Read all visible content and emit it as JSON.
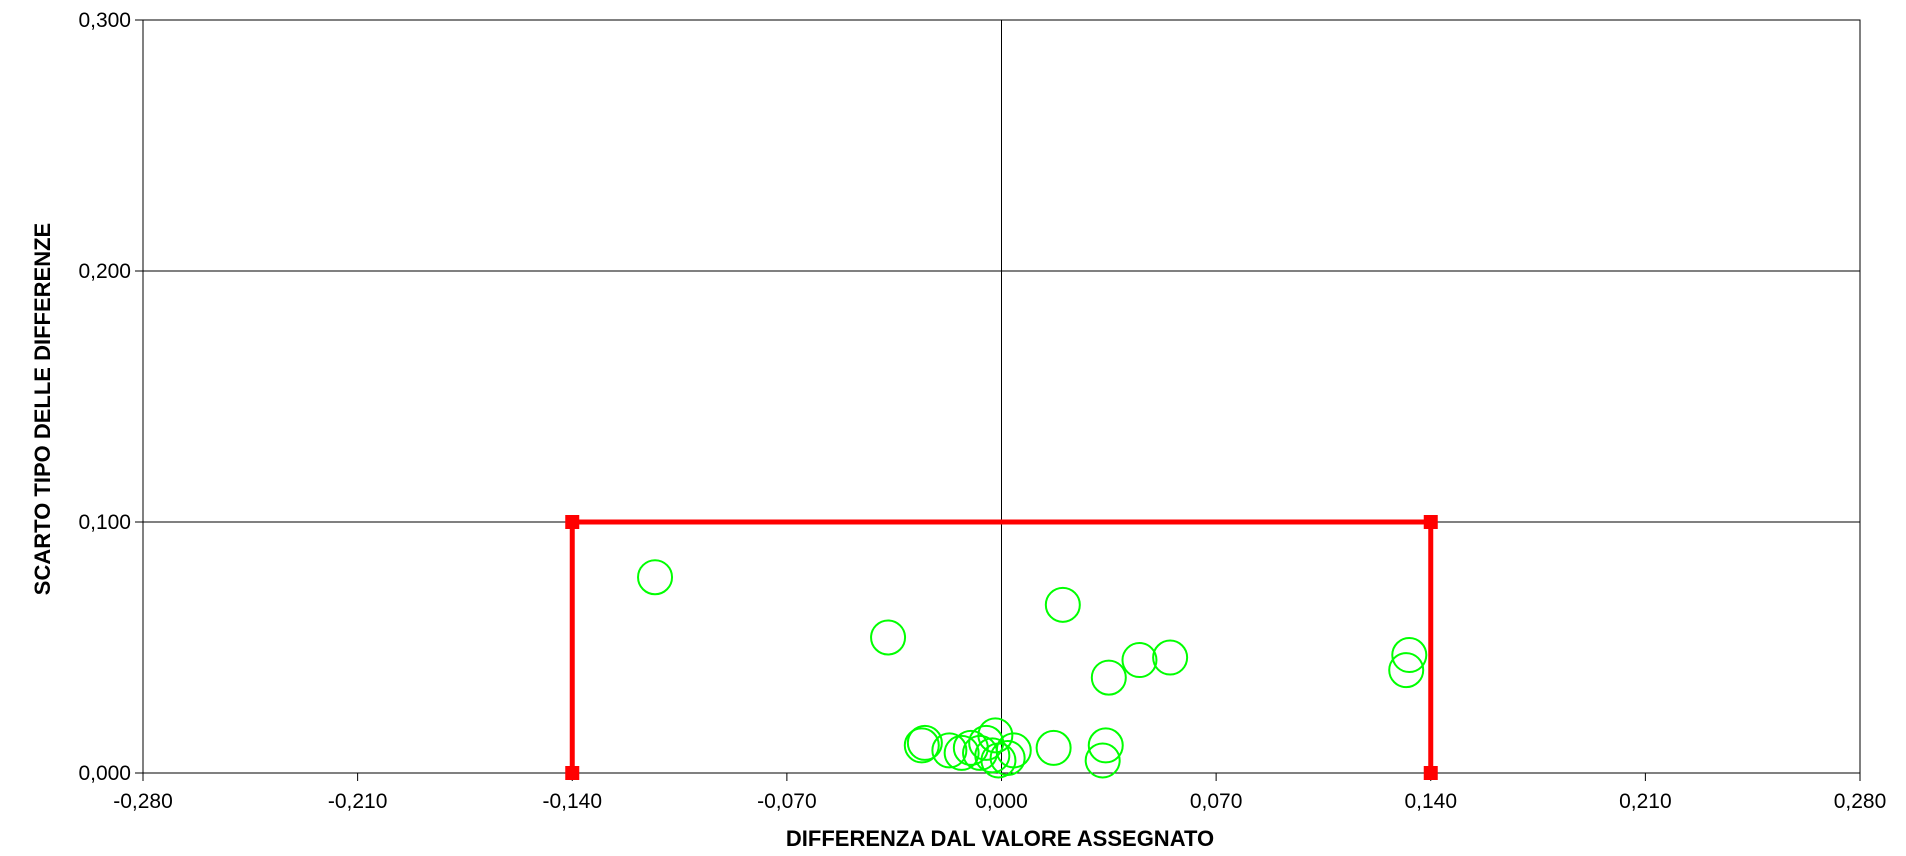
{
  "chart_data": {
    "type": "scatter",
    "xlabel": "DIFFERENZA DAL VALORE ASSEGNATO",
    "ylabel": "SCARTO TIPO DELLE DIFFERENZE",
    "xlim": [
      -0.28,
      0.28
    ],
    "ylim": [
      0,
      0.3
    ],
    "x_ticks": [
      "-0,280",
      "-0,210",
      "-0,140",
      "-0,070",
      "0,000",
      "0,070",
      "0,140",
      "0,210",
      "0,280"
    ],
    "x_tick_values": [
      -0.28,
      -0.21,
      -0.14,
      -0.07,
      0,
      0.07,
      0.14,
      0.21,
      0.28
    ],
    "y_ticks": [
      "0,000",
      "0,100",
      "0,200",
      "0,300"
    ],
    "y_tick_values": [
      0,
      0.1,
      0.2,
      0.3
    ],
    "grid": true,
    "legend": "none",
    "limit_box": {
      "color": "#ff0000",
      "points": [
        [
          -0.14,
          0
        ],
        [
          -0.14,
          0.1
        ],
        [
          0.14,
          0.1
        ],
        [
          0.14,
          0
        ]
      ]
    },
    "points_color": "#00ff00",
    "points": [
      [
        -0.113,
        0.078
      ],
      [
        -0.037,
        0.054
      ],
      [
        -0.026,
        0.011
      ],
      [
        -0.025,
        0.012
      ],
      [
        -0.017,
        0.009
      ],
      [
        -0.013,
        0.008
      ],
      [
        -0.01,
        0.01
      ],
      [
        -0.007,
        0.008
      ],
      [
        -0.005,
        0.012
      ],
      [
        -0.003,
        0.007
      ],
      [
        -0.002,
        0.015
      ],
      [
        -0.001,
        0.005
      ],
      [
        0.002,
        0.006
      ],
      [
        0.004,
        0.009
      ],
      [
        0.017,
        0.01
      ],
      [
        0.02,
        0.067
      ],
      [
        0.033,
        0.005
      ],
      [
        0.034,
        0.011
      ],
      [
        0.035,
        0.038
      ],
      [
        0.045,
        0.045
      ],
      [
        0.055,
        0.046
      ],
      [
        0.132,
        0.041
      ],
      [
        0.133,
        0.047
      ]
    ]
  }
}
